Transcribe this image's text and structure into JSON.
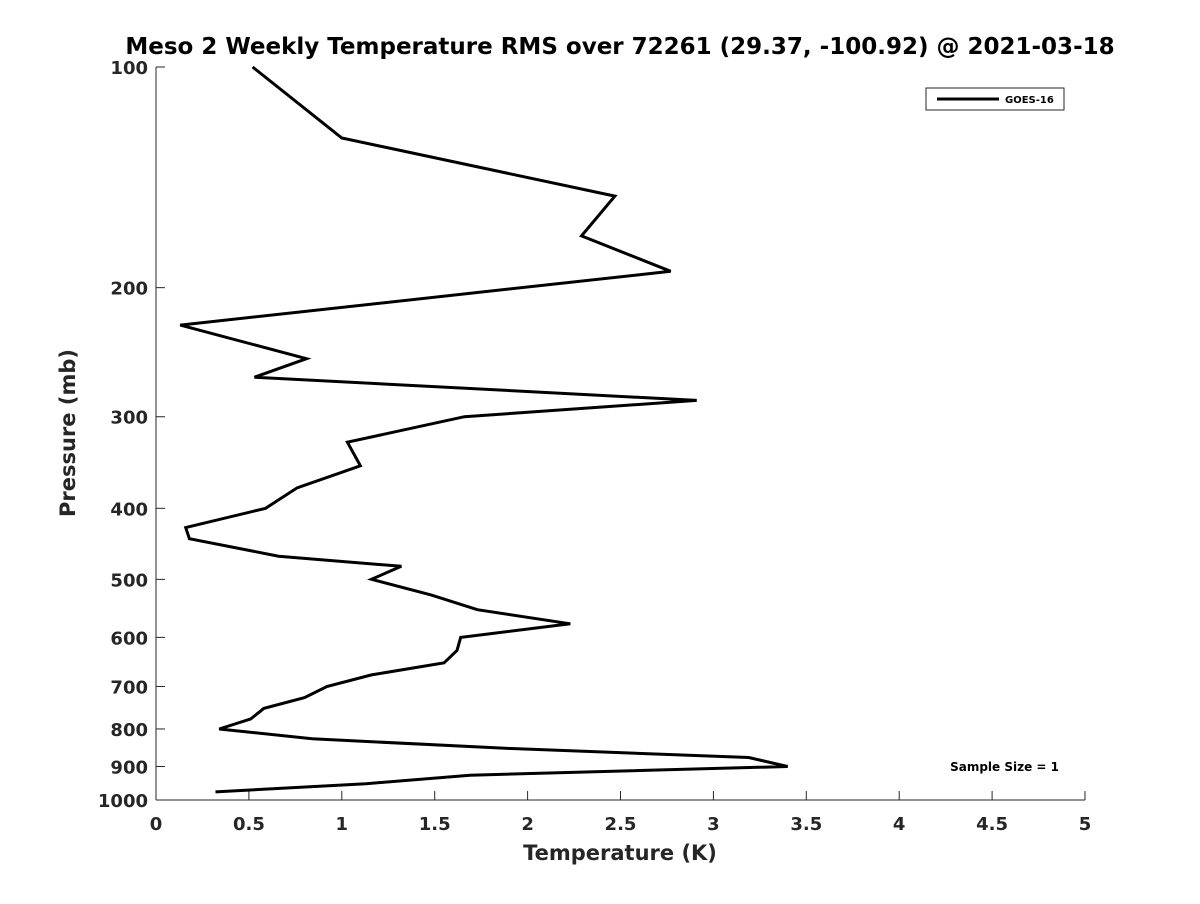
{
  "chart_data": {
    "type": "line",
    "title": "Meso 2 Weekly Temperature RMS over 72261 (29.37, -100.92) @ 2021-03-18",
    "xlabel": "Temperature (K)",
    "ylabel": "Pressure (mb)",
    "xlim": [
      0,
      5
    ],
    "ylim": [
      100,
      1000
    ],
    "yscale": "log",
    "y_reversed": true,
    "grid": false,
    "legend_position": "top-right",
    "x_ticks": [
      0,
      0.5,
      1,
      1.5,
      2,
      2.5,
      3,
      3.5,
      4,
      4.5,
      5
    ],
    "x_tick_labels": [
      "0",
      "0.5",
      "1",
      "1.5",
      "2",
      "2.5",
      "3",
      "3.5",
      "4",
      "4.5",
      "5"
    ],
    "y_ticks": [
      100,
      200,
      300,
      400,
      500,
      600,
      700,
      800,
      900,
      1000
    ],
    "y_tick_labels": [
      "100",
      "200",
      "300",
      "400",
      "500",
      "600",
      "700",
      "800",
      "900",
      "1000"
    ],
    "series": [
      {
        "name": "GOES-16",
        "color": "#000000",
        "x": [
          0.52,
          1.0,
          2.47,
          2.29,
          2.77,
          0.13,
          0.81,
          0.53,
          2.91,
          1.66,
          1.03,
          1.1,
          0.76,
          0.59,
          0.16,
          0.18,
          0.66,
          1.32,
          1.16,
          1.48,
          1.73,
          2.23,
          1.64,
          1.62,
          1.55,
          1.16,
          0.92,
          0.8,
          0.58,
          0.51,
          0.34,
          0.84,
          1.88,
          3.19,
          3.4,
          1.69,
          1.13,
          0.32
        ],
        "y": [
          100,
          125,
          150,
          170,
          190,
          225,
          250,
          265,
          285,
          300,
          325,
          350,
          375,
          400,
          425,
          440,
          465,
          480,
          500,
          525,
          550,
          575,
          600,
          625,
          650,
          675,
          700,
          725,
          750,
          775,
          800,
          825,
          850,
          875,
          900,
          925,
          950,
          975
        ]
      }
    ],
    "annotations": [
      {
        "text": "Sample Size = 1",
        "position": "bottom-right"
      }
    ]
  }
}
